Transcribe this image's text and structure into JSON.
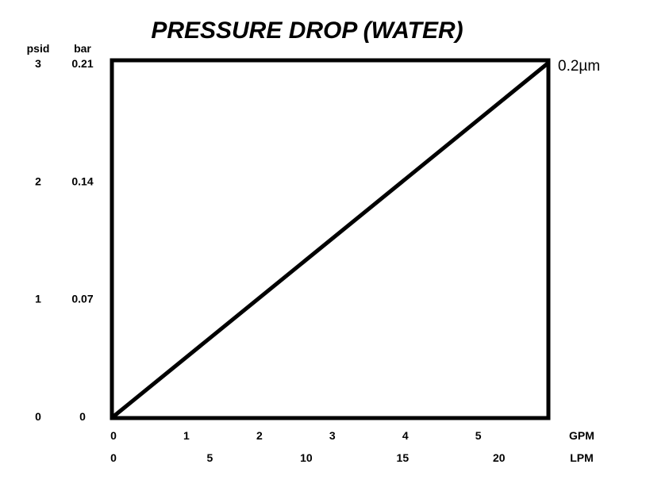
{
  "chart_data": {
    "type": "line",
    "title": "PRESSURE DROP (WATER)",
    "y_units": [
      "psid",
      "bar"
    ],
    "y_ticks_psid": [
      "0",
      "1",
      "2",
      "3"
    ],
    "y_ticks_bar": [
      "0",
      "0.07",
      "0.14",
      "0.21"
    ],
    "x_units": [
      "GPM",
      "LPM"
    ],
    "x_ticks_gpm": [
      "0",
      "1",
      "2",
      "3",
      "4",
      "5"
    ],
    "x_ticks_lpm": [
      "0",
      "5",
      "10",
      "15",
      "20"
    ],
    "x_ticks_lpm_values": [
      0,
      5,
      10,
      15,
      20
    ],
    "xlim_gpm": [
      0,
      5.95
    ],
    "ylim_psid": [
      0,
      3
    ],
    "gpm_per_lpm": 0.2642,
    "grid": false,
    "series": [
      {
        "name": "0.2µm",
        "color": "#000000",
        "x_gpm": [
          0,
          5.95
        ],
        "y_psid": [
          0,
          3
        ]
      }
    ]
  }
}
